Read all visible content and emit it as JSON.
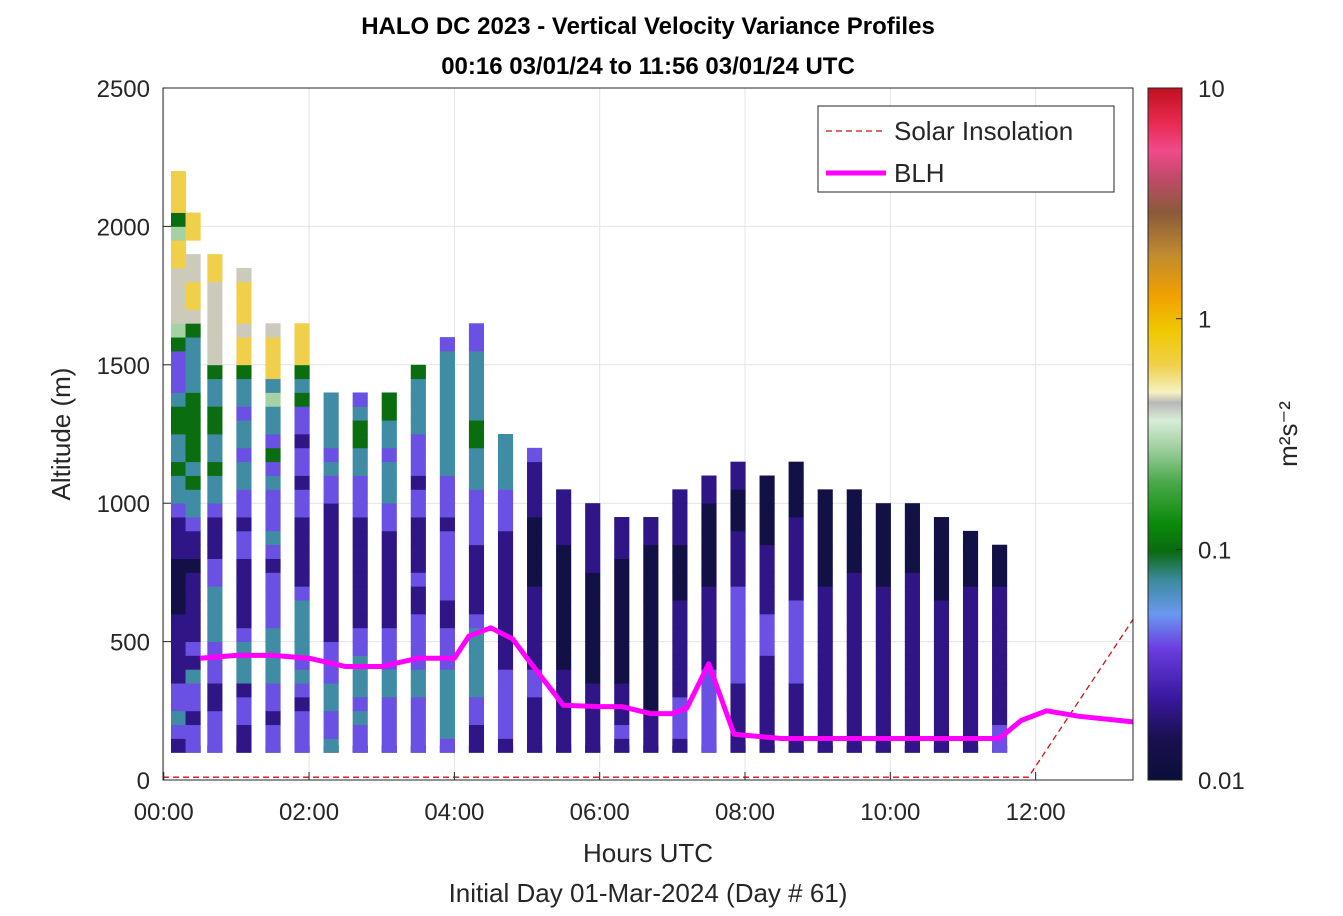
{
  "chart_data": {
    "type": "heatmap",
    "title": "HALO DC 2023 - Vertical Velocity Variance Profiles",
    "subtitle": "00:16 03/01/24 to 11:56 03/01/24  UTC",
    "xlabel": "Hours UTC",
    "xlabel2": "Initial Day 01-Mar-2024 (Day # 61)",
    "ylabel": "Altitude (m)",
    "xlim": [
      -0.01,
      13.34
    ],
    "ylim": [
      0,
      2500
    ],
    "x_ticks": [
      {
        "v": 0,
        "label": "00:00"
      },
      {
        "v": 2,
        "label": "02:00"
      },
      {
        "v": 4,
        "label": "04:00"
      },
      {
        "v": 6,
        "label": "06:00"
      },
      {
        "v": 8,
        "label": "08:00"
      },
      {
        "v": 10,
        "label": "10:00"
      },
      {
        "v": 12,
        "label": "12:00"
      }
    ],
    "y_ticks": [
      {
        "v": 0,
        "label": "0"
      },
      {
        "v": 500,
        "label": "500"
      },
      {
        "v": 1000,
        "label": "1000"
      },
      {
        "v": 1500,
        "label": "1500"
      },
      {
        "v": 2000,
        "label": "2000"
      },
      {
        "v": 2500,
        "label": "2500"
      }
    ],
    "grid": true,
    "legend_position": "top-right",
    "colorbar": {
      "label": "m²s⁻²",
      "scale": "log",
      "range": [
        0.01,
        10
      ],
      "ticks": [
        {
          "v": 0.01,
          "label": "0.01"
        },
        {
          "v": 0.1,
          "label": "0.1"
        },
        {
          "v": 1,
          "label": "1"
        },
        {
          "v": 10,
          "label": "10"
        }
      ],
      "stops": [
        {
          "t": 0.0,
          "c": "#0a0f3a"
        },
        {
          "t": 0.06,
          "c": "#1a1050"
        },
        {
          "t": 0.12,
          "c": "#3a18a0"
        },
        {
          "t": 0.19,
          "c": "#6a3ee0"
        },
        {
          "t": 0.24,
          "c": "#6a98f0"
        },
        {
          "t": 0.29,
          "c": "#3a8a9a"
        },
        {
          "t": 0.33,
          "c": "#0a6a10"
        },
        {
          "t": 0.37,
          "c": "#0a8a0a"
        },
        {
          "t": 0.43,
          "c": "#4aa84a"
        },
        {
          "t": 0.48,
          "c": "#a0d0a0"
        },
        {
          "t": 0.52,
          "c": "#d8ecd8"
        },
        {
          "t": 0.545,
          "c": "#b8b8b8"
        },
        {
          "t": 0.56,
          "c": "#f4f2c0"
        },
        {
          "t": 0.6,
          "c": "#f0d04a"
        },
        {
          "t": 0.65,
          "c": "#f0c800"
        },
        {
          "t": 0.7,
          "c": "#f0a000"
        },
        {
          "t": 0.76,
          "c": "#c08a30"
        },
        {
          "t": 0.82,
          "c": "#8a5a3a"
        },
        {
          "t": 0.87,
          "c": "#c04a6a"
        },
        {
          "t": 0.91,
          "c": "#f04a8a"
        },
        {
          "t": 0.95,
          "c": "#e82a50"
        },
        {
          "t": 1.0,
          "c": "#c01020"
        }
      ]
    },
    "series": [
      {
        "name": "Solar Insolation",
        "style": "dashed",
        "color": "#cc1010",
        "x": [
          -0.01,
          11.9,
          13.34
        ],
        "y": [
          10,
          10,
          580
        ]
      },
      {
        "name": "BLH",
        "style": "solid",
        "color": "#ff00ff",
        "x": [
          0.5,
          1.0,
          1.5,
          2.0,
          2.5,
          3.0,
          3.5,
          4.0,
          4.2,
          4.5,
          4.8,
          5.0,
          5.5,
          6.0,
          6.3,
          6.7,
          7.0,
          7.2,
          7.5,
          7.85,
          8.5,
          9.0,
          9.5,
          10.0,
          10.5,
          11.0,
          11.5,
          11.8,
          12.15,
          12.6,
          13.34
        ],
        "y": [
          440,
          450,
          450,
          440,
          410,
          410,
          440,
          440,
          520,
          550,
          510,
          440,
          270,
          265,
          265,
          240,
          240,
          260,
          420,
          165,
          150,
          150,
          150,
          150,
          150,
          150,
          150,
          215,
          250,
          230,
          210
        ]
      }
    ],
    "heatmap": {
      "x_start": 0.9,
      "x_step": 0.2,
      "y_step": 50,
      "bins": 3,
      "missing": -1,
      "levels": [
        -1.9,
        -1.7,
        -1.4,
        -1.15,
        -1.0,
        -0.55,
        -0.35,
        -0.2
      ],
      "cols": [
        {
          "x": 0.3,
          "base": 3,
          "levels": [
            1,
            2,
            3,
            2,
            2,
            1,
            1,
            1,
            1,
            1,
            0,
            0,
            0,
            0,
            1,
            1,
            1,
            2,
            3,
            3,
            4,
            3,
            3,
            4,
            4,
            3,
            2,
            2,
            2,
            4,
            5,
            6,
            6,
            6,
            6,
            7,
            7,
            5,
            4,
            7,
            7,
            7
          ]
        },
        {
          "x": 0.5,
          "base": 3,
          "levels": [
            2,
            2,
            1,
            2,
            2,
            3,
            1,
            2,
            1,
            1,
            1,
            1,
            1,
            0,
            1,
            1,
            2,
            3,
            3,
            4,
            3,
            4,
            4,
            4,
            4,
            4,
            3,
            3,
            3,
            3,
            4,
            6,
            7,
            7,
            6,
            6,
            -1,
            7,
            7
          ]
        },
        {
          "x": 0.8,
          "base": 3,
          "levels": [
            2,
            2,
            2,
            1,
            1,
            2,
            2,
            2,
            3,
            3,
            3,
            3,
            2,
            2,
            1,
            1,
            1,
            2,
            3,
            3,
            4,
            3,
            3,
            4,
            4,
            3,
            3,
            4,
            6,
            6,
            6,
            6,
            6,
            6,
            7,
            7
          ]
        },
        {
          "x": 1.2,
          "base": 3,
          "levels": [
            1,
            1,
            2,
            2,
            1,
            3,
            3,
            3,
            2,
            1,
            1,
            1,
            1,
            1,
            2,
            2,
            1,
            2,
            2,
            3,
            3,
            2,
            3,
            3,
            2,
            3,
            3,
            4,
            7,
            7,
            6,
            7,
            8,
            7,
            6
          ]
        },
        {
          "x": 1.6,
          "base": 3,
          "levels": [
            2,
            2,
            1,
            2,
            2,
            3,
            3,
            3,
            3,
            2,
            2,
            2,
            2,
            1,
            2,
            3,
            2,
            2,
            2,
            3,
            2,
            4,
            2,
            3,
            3,
            5,
            3,
            7,
            7,
            7,
            6
          ]
        },
        {
          "x": 2.0,
          "base": 3,
          "levels": [
            2,
            2,
            2,
            1,
            2,
            3,
            2,
            3,
            3,
            3,
            3,
            2,
            1,
            1,
            1,
            1,
            1,
            2,
            2,
            1,
            2,
            2,
            1,
            2,
            2,
            4,
            3,
            4,
            7,
            7,
            7
          ]
        },
        {
          "x": 2.4,
          "base": 3,
          "levels": [
            3,
            2,
            2,
            3,
            3,
            2,
            2,
            2,
            1,
            1,
            1,
            1,
            1,
            1,
            1,
            1,
            1,
            1,
            2,
            2,
            3,
            2,
            3,
            3,
            3,
            3
          ]
        },
        {
          "x": 2.8,
          "base": 3,
          "levels": [
            2,
            2,
            3,
            2,
            3,
            3,
            3,
            2,
            2,
            1,
            1,
            1,
            1,
            1,
            1,
            1,
            1,
            2,
            2,
            2,
            3,
            3,
            4,
            4,
            3,
            2
          ]
        },
        {
          "x": 3.2,
          "base": 3,
          "levels": [
            2,
            2,
            2,
            2,
            3,
            3,
            2,
            2,
            2,
            1,
            1,
            1,
            1,
            1,
            1,
            1,
            2,
            2,
            3,
            3,
            3,
            2,
            3,
            3,
            4,
            4
          ]
        },
        {
          "x": 3.6,
          "base": 3,
          "levels": [
            2,
            2,
            2,
            2,
            3,
            3,
            2,
            2,
            2,
            2,
            1,
            1,
            2,
            1,
            1,
            1,
            1,
            2,
            2,
            1,
            2,
            2,
            2,
            3,
            3,
            3,
            3,
            4
          ]
        },
        {
          "x": 4.0,
          "base": 3,
          "levels": [
            2,
            3,
            3,
            3,
            3,
            3,
            2,
            2,
            2,
            1,
            1,
            2,
            2,
            2,
            2,
            2,
            1,
            2,
            2,
            2,
            3,
            3,
            3,
            3,
            3,
            3,
            3,
            3,
            3,
            2
          ]
        },
        {
          "x": 4.4,
          "base": 3,
          "levels": [
            1,
            1,
            2,
            2,
            3,
            3,
            3,
            3,
            3,
            2,
            1,
            1,
            1,
            1,
            1,
            2,
            2,
            2,
            2,
            3,
            3,
            3,
            4,
            4,
            3,
            3,
            3,
            3,
            3,
            2,
            2
          ]
        },
        {
          "x": 4.8,
          "base": 3,
          "levels": [
            1,
            2,
            2,
            2,
            2,
            2,
            1,
            1,
            1,
            1,
            1,
            1,
            1,
            1,
            1,
            1,
            2,
            2,
            2,
            3,
            3,
            3,
            3
          ]
        },
        {
          "x": 5.2,
          "base": 3,
          "levels": [
            1,
            1,
            1,
            1,
            2,
            2,
            1,
            1,
            1,
            1,
            1,
            1,
            0,
            0,
            0,
            0,
            0,
            1,
            1,
            1,
            1,
            2
          ]
        },
        {
          "x": 5.6,
          "base": 3,
          "levels": [
            1,
            1,
            1,
            1,
            1,
            1,
            0,
            0,
            0,
            0,
            0,
            0,
            0,
            0,
            0,
            1,
            1,
            1,
            1
          ]
        },
        {
          "x": 6.0,
          "base": 3,
          "levels": [
            1,
            1,
            1,
            1,
            1,
            0,
            0,
            0,
            0,
            0,
            0,
            0,
            0,
            1,
            1,
            1,
            1,
            1
          ]
        },
        {
          "x": 6.4,
          "base": 3,
          "levels": [
            1,
            2,
            1,
            1,
            1,
            0,
            0,
            0,
            0,
            0,
            0,
            0,
            0,
            0,
            1,
            1,
            1
          ]
        },
        {
          "x": 6.8,
          "base": 3,
          "levels": [
            1,
            1,
            1,
            0,
            0,
            0,
            0,
            0,
            0,
            0,
            0,
            0,
            0,
            0,
            0,
            1,
            1
          ]
        },
        {
          "x": 7.2,
          "base": 3,
          "levels": [
            1,
            2,
            2,
            2,
            1,
            1,
            1,
            1,
            1,
            1,
            1,
            0,
            0,
            0,
            0,
            1,
            1,
            1,
            1
          ]
        },
        {
          "x": 7.6,
          "base": 3,
          "levels": [
            2,
            2,
            2,
            2,
            2,
            2,
            1,
            1,
            1,
            1,
            1,
            1,
            0,
            0,
            0,
            0,
            0,
            0,
            1,
            1
          ]
        },
        {
          "x": 8.0,
          "base": 3,
          "levels": [
            1,
            1,
            1,
            1,
            1,
            2,
            2,
            2,
            2,
            2,
            2,
            2,
            1,
            1,
            1,
            1,
            0,
            0,
            0,
            1,
            1
          ]
        },
        {
          "x": 8.4,
          "base": 3,
          "levels": [
            1,
            1,
            1,
            1,
            1,
            1,
            1,
            2,
            2,
            2,
            1,
            1,
            1,
            1,
            1,
            0,
            0,
            0,
            0,
            0
          ]
        },
        {
          "x": 8.8,
          "base": 3,
          "levels": [
            1,
            1,
            1,
            1,
            1,
            2,
            2,
            2,
            2,
            2,
            2,
            1,
            1,
            1,
            1,
            1,
            1,
            0,
            0,
            0,
            0
          ]
        },
        {
          "x": 9.2,
          "base": 3,
          "levels": [
            1,
            1,
            1,
            1,
            1,
            1,
            1,
            1,
            1,
            1,
            1,
            1,
            0,
            0,
            0,
            0,
            0,
            0,
            0
          ]
        },
        {
          "x": 9.6,
          "base": 3,
          "levels": [
            1,
            1,
            1,
            1,
            1,
            1,
            1,
            1,
            1,
            1,
            1,
            1,
            1,
            0,
            0,
            0,
            0,
            0,
            0
          ]
        },
        {
          "x": 10.0,
          "base": 3,
          "levels": [
            1,
            1,
            1,
            1,
            1,
            1,
            1,
            1,
            1,
            1,
            1,
            1,
            0,
            0,
            0,
            0,
            0,
            0
          ]
        },
        {
          "x": 10.4,
          "base": 3,
          "levels": [
            1,
            1,
            1,
            1,
            1,
            1,
            1,
            1,
            1,
            1,
            1,
            1,
            1,
            0,
            0,
            0,
            0,
            0
          ]
        },
        {
          "x": 10.8,
          "base": 3,
          "levels": [
            1,
            1,
            1,
            1,
            1,
            1,
            1,
            1,
            1,
            1,
            1,
            0,
            0,
            0,
            0,
            0,
            0
          ]
        },
        {
          "x": 11.2,
          "base": 3,
          "levels": [
            1,
            1,
            1,
            1,
            1,
            1,
            1,
            1,
            1,
            1,
            1,
            1,
            0,
            0,
            0,
            0
          ]
        },
        {
          "x": 11.6,
          "base": 3,
          "levels": [
            2,
            2,
            1,
            1,
            1,
            1,
            1,
            1,
            1,
            1,
            1,
            1,
            0,
            0,
            0
          ]
        }
      ]
    }
  }
}
